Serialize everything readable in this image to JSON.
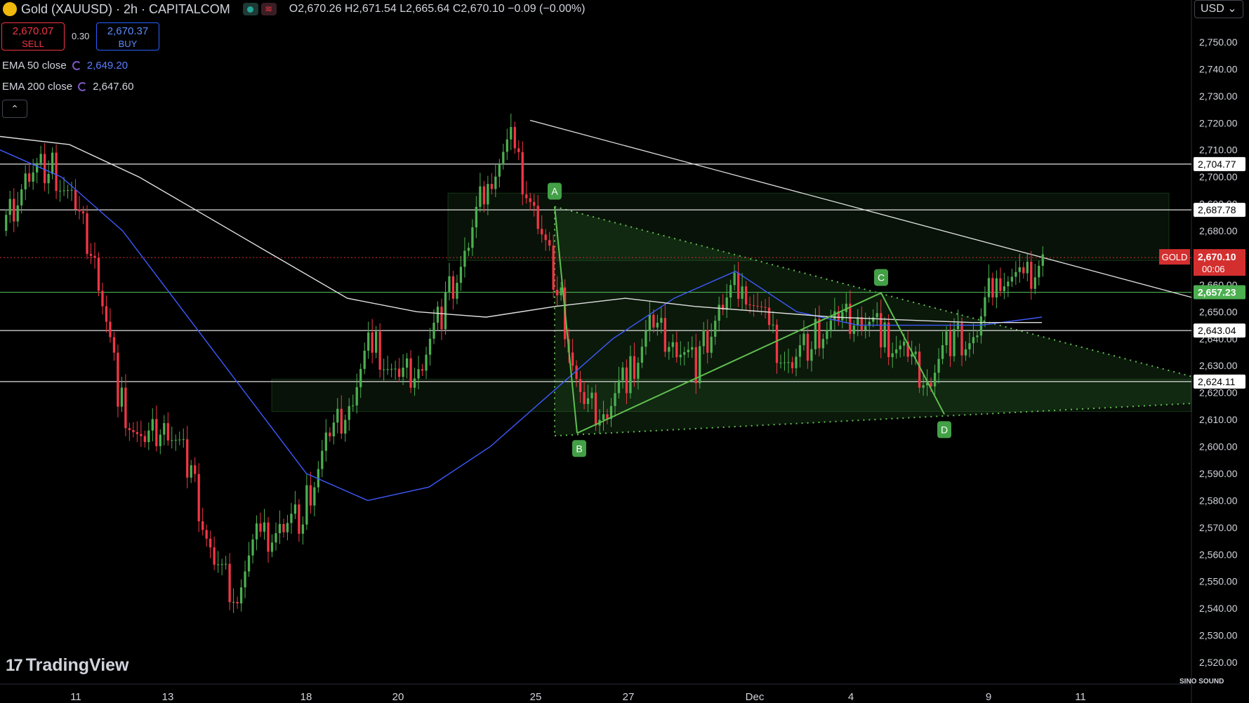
{
  "header": {
    "title": "Gold (XAUUSD) · 2h · CAPITALCOM",
    "ohlc": {
      "O": "2,670.26",
      "H": "2,671.54",
      "L": "2,665.64",
      "C": "2,670.10",
      "change": "−0.09 (−0.00%)"
    },
    "sell_price": "2,670.07",
    "sell_label": "SELL",
    "spread": "0.30",
    "buy_price": "2,670.37",
    "buy_label": "BUY",
    "currency": "USD"
  },
  "indicators": [
    {
      "label": "EMA 50 close",
      "value": "2,649.20",
      "color": "#3d5afe"
    },
    {
      "label": "EMA 200 close",
      "value": "2,647.60",
      "color": "#e0e0e0"
    }
  ],
  "branding": {
    "logo_text": "TradingView",
    "watermark": "SINO SOUND"
  },
  "colors": {
    "up": "#26a69a",
    "down": "#f23645",
    "bull_body": "#4caf50",
    "pattern": "#5fbf4f",
    "ema50": "#3d5afe",
    "ema200": "#e0e0e0",
    "last_price": "#d32f2f"
  },
  "chart_data": {
    "type": "candlestick",
    "symbol": "GOLD",
    "timeframe": "2h",
    "ylim": [
      2514,
      2760
    ],
    "y_ticks": [
      2520,
      2530,
      2540,
      2550,
      2560,
      2570,
      2580,
      2590,
      2600,
      2610,
      2620,
      2630,
      2640,
      2650,
      2660,
      2670,
      2680,
      2690,
      2700,
      2710,
      2720,
      2730,
      2740,
      2750
    ],
    "x_ticks": [
      "11",
      "13",
      "18",
      "20",
      "25",
      "27",
      "Dec",
      "4",
      "9",
      "11"
    ],
    "series_ohlc_approx": {
      "close": [
        2680,
        2700,
        2705,
        2690,
        2670,
        2620,
        2600,
        2610,
        2595,
        2560,
        2545,
        2565,
        2570,
        2575,
        2600,
        2615,
        2640,
        2625,
        2630,
        2650,
        2670,
        2700,
        2712,
        2688,
        2660,
        2615,
        2612,
        2625,
        2645,
        2640,
        2630,
        2650,
        2662,
        2645,
        2630,
        2640,
        2645,
        2648,
        2642,
        2635,
        2625,
        2640,
        2638,
        2665,
        2660,
        2670
      ]
    },
    "ema50": [
      2710,
      2700,
      2680,
      2650,
      2620,
      2590,
      2580,
      2585,
      2600,
      2620,
      2640,
      2655,
      2665,
      2650,
      2645,
      2645,
      2645,
      2648
    ],
    "ema200": [
      2715,
      2712,
      2700,
      2685,
      2670,
      2655,
      2650,
      2648,
      2652,
      2655,
      2652,
      2650,
      2648,
      2647,
      2646,
      2646
    ],
    "horizontal_levels": [
      {
        "value": 2704.77,
        "label": "2,704.77"
      },
      {
        "value": 2687.78,
        "label": "2,687.78"
      },
      {
        "value": 2657.23,
        "label": "2,657.23",
        "color": "green"
      },
      {
        "value": 2643.04,
        "label": "2,643.04"
      },
      {
        "value": 2624.11,
        "label": "2,624.11"
      }
    ],
    "last_price": {
      "value": 2670.1,
      "label": "2,670.10",
      "countdown": "00:06",
      "symbol": "GOLD"
    },
    "abcd_points": [
      {
        "label": "A",
        "value": 2689
      },
      {
        "label": "B",
        "value": 2605
      },
      {
        "label": "C",
        "value": 2657
      },
      {
        "label": "D",
        "value": 2612
      }
    ],
    "triangle": {
      "upper_start": 2689,
      "upper_end": 2626,
      "lower_start": 2604,
      "lower_end": 2616
    },
    "trendline": {
      "start": 2721,
      "end": 2659
    },
    "zones": [
      {
        "from": 2669,
        "to": 2694
      },
      {
        "from": 2613,
        "to": 2625
      }
    ]
  }
}
